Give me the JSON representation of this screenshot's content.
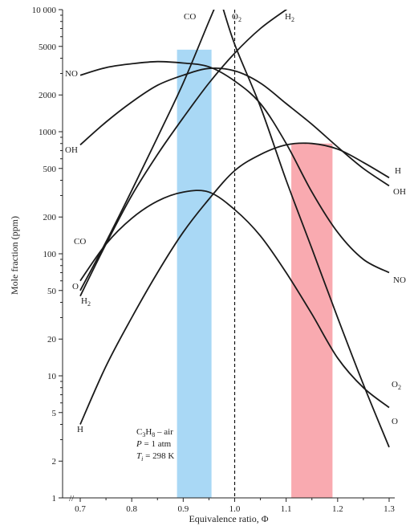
{
  "chart_data": {
    "type": "line",
    "title": "",
    "xlabel": "Equivalence ratio, Φ",
    "ylabel": "Mole fraction (ppm)",
    "xlim": [
      0.67,
      1.3
    ],
    "ylim": [
      1,
      10000
    ],
    "yscale": "log",
    "x_ticks": [
      0.7,
      0.8,
      0.9,
      1.0,
      1.1,
      1.2,
      1.3
    ],
    "x_tick_labels": [
      "0.7",
      "0.8",
      "0.9",
      "1.0",
      "1.1",
      "1.2",
      "1.3"
    ],
    "y_ticks": [
      1,
      2,
      5,
      10,
      20,
      50,
      100,
      200,
      500,
      1000,
      2000,
      5000,
      10000
    ],
    "y_tick_labels": [
      "1",
      "2",
      "5",
      "10",
      "20",
      "50",
      "100",
      "200",
      "500",
      "1000",
      "2000",
      "5000",
      "10 000"
    ],
    "axis_break_symbol": "//",
    "stoichiometric_line": 1.0,
    "conditions": {
      "mixture_base": "C",
      "mixture_sub1": "3",
      "mixture_mid": "H",
      "mixture_sub2": "8",
      "mixture_rest": " – air",
      "pressure_var": "P",
      "pressure_rest": " = 1 atm",
      "temp_var": "T",
      "temp_sub": "i",
      "temp_rest": " = 298 K"
    },
    "highlight_bands": [
      {
        "name": "lean-band",
        "x_range": [
          0.888,
          0.955
        ],
        "color": "#a9d8f5"
      },
      {
        "name": "rich-band",
        "x_range": [
          1.11,
          1.19
        ],
        "color": "#f9aab0"
      }
    ],
    "series": [
      {
        "name": "CO",
        "label_main": "CO",
        "label_sub": "",
        "x": [
          0.7,
          0.75,
          0.8,
          0.85,
          0.9,
          0.95,
          1.0
        ],
        "y": [
          50,
          125,
          330,
          900,
          2500,
          8000,
          25000
        ]
      },
      {
        "name": "O2",
        "label_main": "O",
        "label_sub": "2",
        "x": [
          0.97,
          1.0,
          1.05,
          1.1,
          1.15,
          1.2,
          1.25,
          1.3
        ],
        "y": [
          13000,
          5200,
          1600,
          400,
          110,
          30,
          8.5,
          2.6
        ]
      },
      {
        "name": "H2",
        "label_main": "H",
        "label_sub": "2",
        "x": [
          0.7,
          0.75,
          0.8,
          0.85,
          0.9,
          0.95,
          1.0,
          1.05,
          1.1,
          1.15
        ],
        "y": [
          45,
          120,
          300,
          650,
          1300,
          2500,
          4400,
          7000,
          10000,
          14000
        ]
      },
      {
        "name": "NO",
        "label_main": "NO",
        "label_sub": "",
        "x": [
          0.7,
          0.75,
          0.8,
          0.85,
          0.9,
          0.95,
          1.0,
          1.05,
          1.1,
          1.15,
          1.2,
          1.25,
          1.3
        ],
        "y": [
          2900,
          3350,
          3600,
          3750,
          3650,
          3400,
          2600,
          1700,
          800,
          320,
          150,
          90,
          70
        ]
      },
      {
        "name": "OH",
        "label_main": "OH",
        "label_sub": "",
        "x": [
          0.7,
          0.75,
          0.8,
          0.85,
          0.9,
          0.95,
          1.0,
          1.05,
          1.1,
          1.15,
          1.2,
          1.25,
          1.3
        ],
        "y": [
          780,
          1200,
          1750,
          2400,
          2900,
          3300,
          3150,
          2500,
          1700,
          1150,
          750,
          500,
          360
        ]
      },
      {
        "name": "O",
        "label_main": "O",
        "label_sub": "",
        "x": [
          0.7,
          0.75,
          0.8,
          0.85,
          0.9,
          0.95,
          1.0,
          1.05,
          1.1,
          1.15,
          1.2,
          1.25,
          1.3
        ],
        "y": [
          60,
          120,
          195,
          270,
          320,
          320,
          230,
          140,
          70,
          32,
          14,
          8,
          5.5
        ]
      },
      {
        "name": "H",
        "label_main": "H",
        "label_sub": "",
        "x": [
          0.7,
          0.75,
          0.8,
          0.85,
          0.9,
          0.95,
          1.0,
          1.05,
          1.1,
          1.15,
          1.2,
          1.25,
          1.3
        ],
        "y": [
          4,
          12,
          30,
          70,
          150,
          280,
          480,
          650,
          780,
          800,
          720,
          560,
          420
        ]
      }
    ]
  }
}
